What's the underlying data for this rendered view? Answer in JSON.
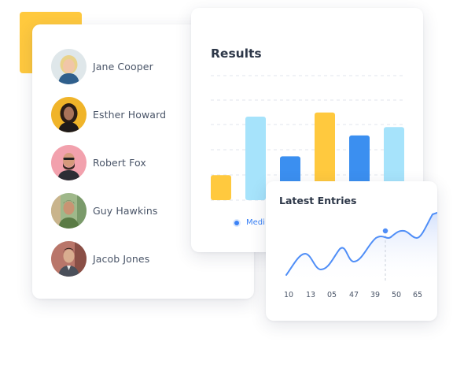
{
  "people": [
    {
      "name": "Jane Cooper",
      "avatar": "jane-cooper-avatar"
    },
    {
      "name": "Esther Howard",
      "avatar": "esther-howard-avatar"
    },
    {
      "name": "Robert Fox",
      "avatar": "robert-fox-avatar"
    },
    {
      "name": "Guy Hawkins",
      "avatar": "guy-hawkins-avatar"
    },
    {
      "name": "Jacob Jones",
      "avatar": "jacob-jones-avatar"
    }
  ],
  "results": {
    "title": "Results",
    "legend_label": "Medi",
    "colors": {
      "yellow": "#ffc93e",
      "light_blue": "#a6e3fb",
      "blue": "#3b8ff0"
    },
    "bars": [
      {
        "value": 1.2,
        "color": "yellow"
      },
      {
        "value": 4.0,
        "color": "light_blue"
      },
      {
        "value": 2.1,
        "color": "blue"
      },
      {
        "value": 4.2,
        "color": "yellow"
      },
      {
        "value": 3.1,
        "color": "blue"
      },
      {
        "value": 3.5,
        "color": "light_blue"
      }
    ],
    "ymax": 5
  },
  "entries": {
    "title": "Latest Entries",
    "x_ticks": [
      "10",
      "13",
      "05",
      "47",
      "39",
      "50",
      "65"
    ],
    "line_color": "#4f8ef7",
    "highlight_index": 5
  }
}
